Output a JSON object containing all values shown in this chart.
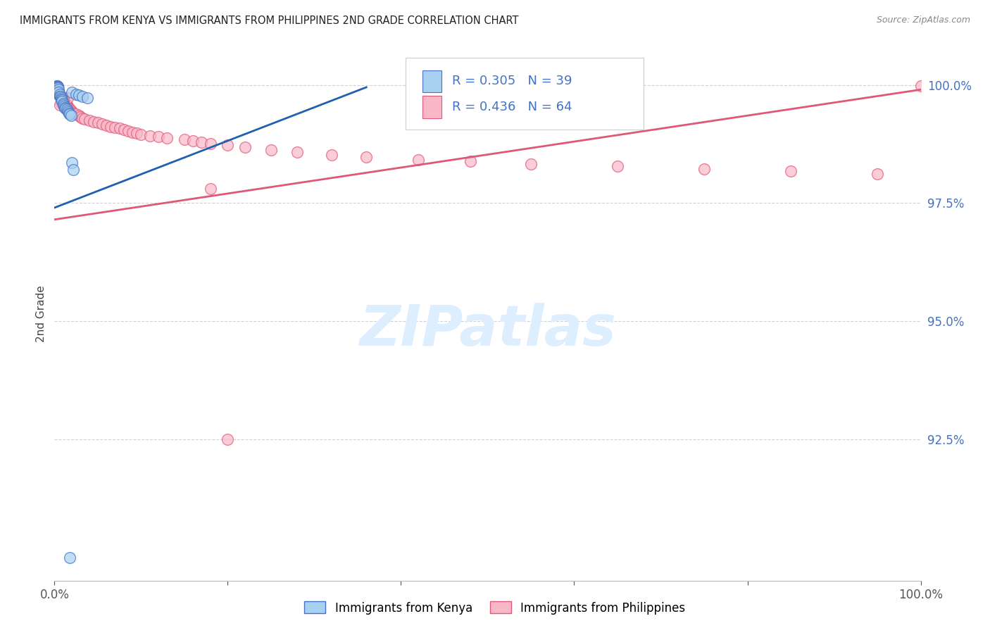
{
  "title": "IMMIGRANTS FROM KENYA VS IMMIGRANTS FROM PHILIPPINES 2ND GRADE CORRELATION CHART",
  "source": "Source: ZipAtlas.com",
  "ylabel": "2nd Grade",
  "x_min": 0.0,
  "x_max": 1.0,
  "y_min": 0.895,
  "y_max": 1.008,
  "y_tick_values": [
    0.925,
    0.95,
    0.975,
    1.0
  ],
  "y_tick_labels": [
    "92.5%",
    "95.0%",
    "97.5%",
    "100.0%"
  ],
  "x_tick_positions": [
    0.0,
    0.2,
    0.4,
    0.6,
    0.8,
    1.0
  ],
  "x_tick_labels": [
    "0.0%",
    "",
    "",
    "",
    "",
    "100.0%"
  ],
  "legend_label1": "Immigrants from Kenya",
  "legend_label2": "Immigrants from Philippines",
  "R_kenya": 0.305,
  "N_kenya": 39,
  "R_phil": 0.436,
  "N_phil": 64,
  "color_kenya_fill": "#a8d0f0",
  "color_kenya_edge": "#4472c4",
  "color_phil_fill": "#f9b8c8",
  "color_phil_edge": "#e05878",
  "color_kenya_line": "#2060b0",
  "color_phil_line": "#e05878",
  "color_y_ticks": "#4472c4",
  "color_x_ticks": "#555555",
  "color_grid": "#cccccc",
  "color_title": "#222222",
  "color_source": "#888888",
  "color_watermark": "#ddeeff",
  "background_color": "#ffffff",
  "kenya_line_x": [
    0.0,
    0.36
  ],
  "kenya_line_y": [
    0.974,
    0.9995
  ],
  "phil_line_x": [
    0.0,
    1.0
  ],
  "phil_line_y": [
    0.9715,
    0.999
  ],
  "kenya_x": [
    0.003,
    0.003,
    0.003,
    0.003,
    0.004,
    0.004,
    0.004,
    0.004,
    0.004,
    0.004,
    0.004,
    0.005,
    0.005,
    0.006,
    0.006,
    0.007,
    0.008,
    0.008,
    0.009,
    0.009,
    0.01,
    0.01,
    0.011,
    0.012,
    0.013,
    0.014,
    0.015,
    0.016,
    0.017,
    0.018,
    0.019,
    0.02,
    0.025,
    0.028,
    0.032,
    0.038,
    0.02,
    0.022,
    0.018
  ],
  "kenya_y": [
    0.9998,
    0.9998,
    0.9997,
    0.9997,
    0.9996,
    0.9996,
    0.9995,
    0.9995,
    0.9994,
    0.9988,
    0.9985,
    0.999,
    0.9985,
    0.998,
    0.9975,
    0.9975,
    0.9972,
    0.997,
    0.9968,
    0.9965,
    0.996,
    0.9958,
    0.9955,
    0.9952,
    0.995,
    0.9948,
    0.9945,
    0.9942,
    0.994,
    0.9938,
    0.9935,
    0.9985,
    0.998,
    0.9978,
    0.9975,
    0.9972,
    0.9835,
    0.982,
    0.9
  ],
  "phil_x": [
    0.003,
    0.004,
    0.005,
    0.006,
    0.007,
    0.008,
    0.009,
    0.01,
    0.011,
    0.012,
    0.013,
    0.014,
    0.015,
    0.016,
    0.017,
    0.018,
    0.019,
    0.02,
    0.022,
    0.025,
    0.028,
    0.03,
    0.032,
    0.035,
    0.04,
    0.045,
    0.05,
    0.055,
    0.06,
    0.065,
    0.07,
    0.075,
    0.08,
    0.085,
    0.09,
    0.095,
    0.1,
    0.11,
    0.12,
    0.13,
    0.15,
    0.16,
    0.17,
    0.18,
    0.2,
    0.22,
    0.25,
    0.28,
    0.32,
    0.36,
    0.42,
    0.48,
    0.55,
    0.65,
    0.75,
    0.85,
    0.95,
    1.0,
    0.015,
    0.01,
    0.008,
    0.006,
    0.2,
    0.18
  ],
  "phil_y": [
    0.9985,
    0.9982,
    0.998,
    0.9978,
    0.9975,
    0.9972,
    0.997,
    0.9968,
    0.9965,
    0.9962,
    0.996,
    0.9958,
    0.9955,
    0.9952,
    0.995,
    0.9948,
    0.9945,
    0.9942,
    0.994,
    0.9938,
    0.9935,
    0.9932,
    0.993,
    0.9928,
    0.9925,
    0.9922,
    0.992,
    0.9918,
    0.9915,
    0.9912,
    0.991,
    0.9908,
    0.9905,
    0.9902,
    0.99,
    0.9898,
    0.9895,
    0.9892,
    0.989,
    0.9888,
    0.9885,
    0.9882,
    0.9878,
    0.9875,
    0.9872,
    0.9868,
    0.9862,
    0.9858,
    0.9852,
    0.9848,
    0.9842,
    0.9838,
    0.9832,
    0.9828,
    0.9822,
    0.9818,
    0.9812,
    0.9998,
    0.9972,
    0.9968,
    0.9962,
    0.9958,
    0.925,
    0.978
  ]
}
